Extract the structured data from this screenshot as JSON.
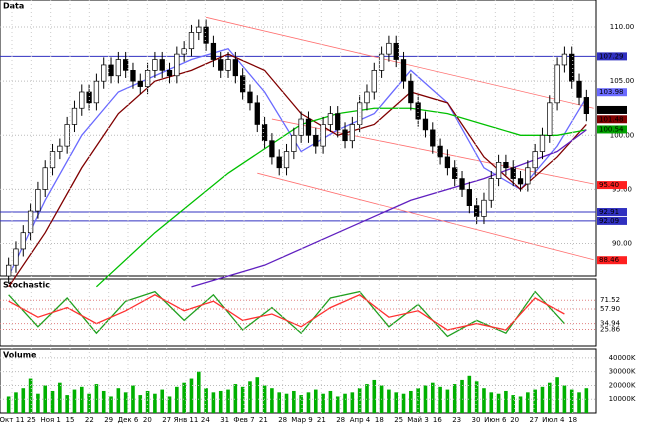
{
  "chart_data": {
    "type": "candlestick",
    "title": "Data",
    "stoch_title": "Stochastic",
    "volume_title": "Volume",
    "open": [
      87,
      88,
      89.5,
      91,
      93,
      95,
      97,
      98.5,
      99,
      101,
      102.5,
      104,
      103,
      105,
      106.5,
      105.5,
      107,
      106,
      105,
      104.5,
      106,
      107,
      106,
      105.5,
      107.5,
      108,
      109.5,
      110,
      108.5,
      107,
      106,
      107,
      105.5,
      104,
      103,
      101,
      99.5,
      98,
      97,
      98.5,
      100,
      101.5,
      100,
      99,
      101,
      102,
      100.5,
      99.5,
      101,
      103,
      104,
      106,
      107.5,
      108.5,
      107,
      105,
      103,
      101.5,
      100.5,
      99,
      98,
      97,
      96,
      95,
      93.5,
      92.5,
      94,
      96,
      97.5,
      97,
      96,
      95.5,
      97,
      98.5,
      100,
      103,
      106.5,
      107.5,
      105,
      103.5
    ],
    "high": [
      88.7,
      90.2,
      91.7,
      93.7,
      95.7,
      97.7,
      99.2,
      99.7,
      101.7,
      103.2,
      104.7,
      104.7,
      105.7,
      107.2,
      107.2,
      107.7,
      107.7,
      106.7,
      105.7,
      106.7,
      107.7,
      107.7,
      106.7,
      108.2,
      108.7,
      110.2,
      110.7,
      110.7,
      109.2,
      107.7,
      107.7,
      107.7,
      106.2,
      104.7,
      103.7,
      101.7,
      100.2,
      98.7,
      99.2,
      100.7,
      102.2,
      102.2,
      100.7,
      101.7,
      102.7,
      102.7,
      101.2,
      101.7,
      103.7,
      104.7,
      106.7,
      108.2,
      109.2,
      109.2,
      107.7,
      105.7,
      103.7,
      102.2,
      101.2,
      99.7,
      98.7,
      97.7,
      96.7,
      95.7,
      94.2,
      94.7,
      96.7,
      98.2,
      98.2,
      97.7,
      96.7,
      97.7,
      99.2,
      100.7,
      103.7,
      107.2,
      108.2,
      108.2,
      105.7,
      104.2
    ],
    "low": [
      86.3,
      87.3,
      88.8,
      90.3,
      92.3,
      94.3,
      96.3,
      97.8,
      98.3,
      100.3,
      101.8,
      102.3,
      102.3,
      104.3,
      104.8,
      104.8,
      105.3,
      104.3,
      103.8,
      103.8,
      105.3,
      105.3,
      104.8,
      104.8,
      106.8,
      107.3,
      108.8,
      107.8,
      106.3,
      105.3,
      105.3,
      104.8,
      103.3,
      102.3,
      100.3,
      98.8,
      97.3,
      96.3,
      96.3,
      97.8,
      99.3,
      99.3,
      98.3,
      98.3,
      100.3,
      99.8,
      98.8,
      98.8,
      100.3,
      102.3,
      103.3,
      105.3,
      106.8,
      106.3,
      104.3,
      102.3,
      100.8,
      99.8,
      98.3,
      97.3,
      96.3,
      95.3,
      94.3,
      92.8,
      91.8,
      91.8,
      93.3,
      95.3,
      96.3,
      95.3,
      94.8,
      94.8,
      96.3,
      97.8,
      99.3,
      102.3,
      105.8,
      104.3,
      102.8,
      101.3
    ],
    "close": [
      88,
      89.5,
      91,
      93,
      95,
      97,
      98.5,
      99,
      101,
      102.5,
      104,
      103,
      105,
      106.5,
      105.5,
      107,
      106,
      105,
      104.5,
      106,
      107,
      106,
      105.5,
      107.5,
      108,
      109.5,
      110,
      108.5,
      107,
      106,
      107,
      105.5,
      104,
      103,
      101,
      99.5,
      98,
      97,
      98.5,
      100,
      101.5,
      100,
      99,
      101,
      102,
      100.5,
      99.5,
      101,
      103,
      104,
      106,
      107.5,
      108.5,
      107,
      105,
      103,
      101.5,
      100.5,
      99,
      98,
      97,
      96,
      95,
      93.5,
      92.5,
      94,
      96,
      97.5,
      97,
      96,
      95.5,
      97,
      98.5,
      100,
      103,
      106.5,
      107.5,
      105,
      103.5,
      102
    ],
    "ylim": [
      87,
      112.5
    ],
    "yticks": [
      {
        "value": 110,
        "label": "110.00"
      },
      {
        "value": 105,
        "label": "105.00"
      },
      {
        "value": 100,
        "label": "100.00"
      },
      {
        "value": 95,
        "label": "95.00"
      },
      {
        "value": 90,
        "label": "90.00"
      }
    ],
    "lines": [
      {
        "color": "#6a6aff",
        "x": [
          0,
          5,
          10,
          15,
          20,
          25,
          30,
          35,
          40,
          45,
          50,
          55,
          60,
          65,
          70,
          75,
          79
        ],
        "values": [
          87,
          94,
          100,
          104,
          105.5,
          107,
          108,
          104,
          98.5,
          100.5,
          102,
          106,
          103,
          97,
          95,
          99,
          103.5
        ]
      },
      {
        "color": "#800000",
        "x": [
          0,
          5,
          10,
          15,
          20,
          25,
          30,
          35,
          40,
          45,
          50,
          55,
          60,
          65,
          70,
          75,
          79
        ],
        "values": [
          86,
          91,
          97,
          102,
          105,
          106,
          107.5,
          106,
          102,
          100,
          101,
          104,
          103,
          98,
          95,
          98,
          101
        ]
      },
      {
        "color": "#00c000",
        "x": [
          12,
          20,
          30,
          40,
          45,
          50,
          55,
          60,
          65,
          70,
          75,
          79
        ],
        "values": [
          86,
          91,
          96.5,
          101,
          102,
          102.5,
          102.5,
          102,
          101,
          100,
          100,
          100.5
        ]
      },
      {
        "color": "#6020c0",
        "x": [
          25,
          35,
          45,
          55,
          65,
          75,
          79
        ],
        "values": [
          86,
          88,
          91,
          94,
          96,
          98.5,
          100.5
        ]
      }
    ],
    "trendlines": [
      {
        "x": [
          27,
          80
        ],
        "values": [
          110.9,
          102.5
        ]
      },
      {
        "x": [
          36,
          80
        ],
        "values": [
          101.5,
          95.5
        ]
      },
      {
        "x": [
          34,
          80
        ],
        "values": [
          96.5,
          88.5
        ]
      }
    ],
    "hlines": [
      {
        "value": 107.29,
        "label": "107.29",
        "color": "#3030c0"
      },
      {
        "value": 92.91,
        "label": "92.91",
        "color": "#3030c0"
      },
      {
        "value": 92.09,
        "label": "92.09",
        "color": "#3030c0"
      }
    ],
    "price_labels": [
      {
        "value": 103.98,
        "label": "103.98",
        "color": "#6a6aff"
      },
      {
        "value": 102.34,
        "label": "102.34",
        "color": "#000000"
      },
      {
        "value": 101.48,
        "label": "101.48",
        "color": "#800000"
      },
      {
        "value": 100.54,
        "label": "100.54",
        "color": "#00a000"
      },
      {
        "value": 95.4,
        "label": "95.40",
        "color": "#ff2020"
      },
      {
        "value": 88.46,
        "label": "88.46",
        "color": "#ff2020"
      }
    ],
    "stoch_x": [
      0,
      4,
      8,
      12,
      16,
      20,
      24,
      28,
      32,
      36,
      40,
      44,
      48,
      52,
      56,
      60,
      64,
      68,
      72,
      76
    ],
    "stoch_k": [
      80,
      30,
      75,
      20,
      70,
      85,
      40,
      80,
      25,
      60,
      20,
      75,
      85,
      30,
      65,
      15,
      40,
      20,
      85,
      35
    ],
    "stoch_d": [
      70,
      45,
      60,
      35,
      55,
      80,
      55,
      70,
      40,
      50,
      30,
      60,
      80,
      45,
      55,
      25,
      35,
      25,
      75,
      50
    ],
    "stoch_colors": [
      "#20a020",
      "#ff3030"
    ],
    "stoch_ylim": [
      0,
      100
    ],
    "stoch_labels": [
      {
        "value": 71.52,
        "label": "71.52"
      },
      {
        "value": 57.9,
        "label": "57.90"
      },
      {
        "value": 34.94,
        "label": "34.94"
      },
      {
        "value": 25.86,
        "label": "25.86"
      }
    ],
    "volume": [
      12000,
      15000,
      18000,
      25000,
      14000,
      20000,
      16000,
      22000,
      13000,
      17000,
      19000,
      14000,
      21000,
      16000,
      12000,
      18000,
      15000,
      20000,
      13000,
      16000,
      14000,
      17000,
      12000,
      19000,
      22000,
      25000,
      30000,
      18000,
      15000,
      16000,
      17000,
      21000,
      19000,
      23000,
      26000,
      20000,
      18000,
      15000,
      14000,
      16000,
      13000,
      15000,
      17000,
      14000,
      16000,
      12000,
      14000,
      15000,
      18000,
      21000,
      24000,
      20000,
      17000,
      15000,
      14000,
      16000,
      18000,
      20000,
      22000,
      19000,
      17000,
      21000,
      24000,
      27000,
      23000,
      18000,
      15000,
      14000,
      16000,
      13000,
      12000,
      15000,
      17000,
      19000,
      22000,
      26000,
      20000,
      17000,
      15000,
      18000
    ],
    "volume_color": "#00b000",
    "volume_ylim": [
      0,
      45000
    ],
    "volume_ticks": [
      {
        "value": 10000,
        "label": "10000K"
      },
      {
        "value": 20000,
        "label": "20000K"
      },
      {
        "value": 30000,
        "label": "30000K"
      },
      {
        "value": 40000,
        "label": "40000K"
      }
    ],
    "dates": [
      "Окт 11",
      "25",
      "Ноя 1",
      "15",
      "22",
      "29",
      "Дек 6",
      "20",
      "27",
      "Янв 11",
      "24",
      "31",
      "Фев 7",
      "21",
      "28",
      "Мар 9",
      "21",
      "28",
      "Апр 4",
      "18",
      "25",
      "Май 3",
      "16",
      "23",
      "30",
      "Июн 6",
      "20",
      "27",
      "Июл 4",
      "18"
    ]
  }
}
